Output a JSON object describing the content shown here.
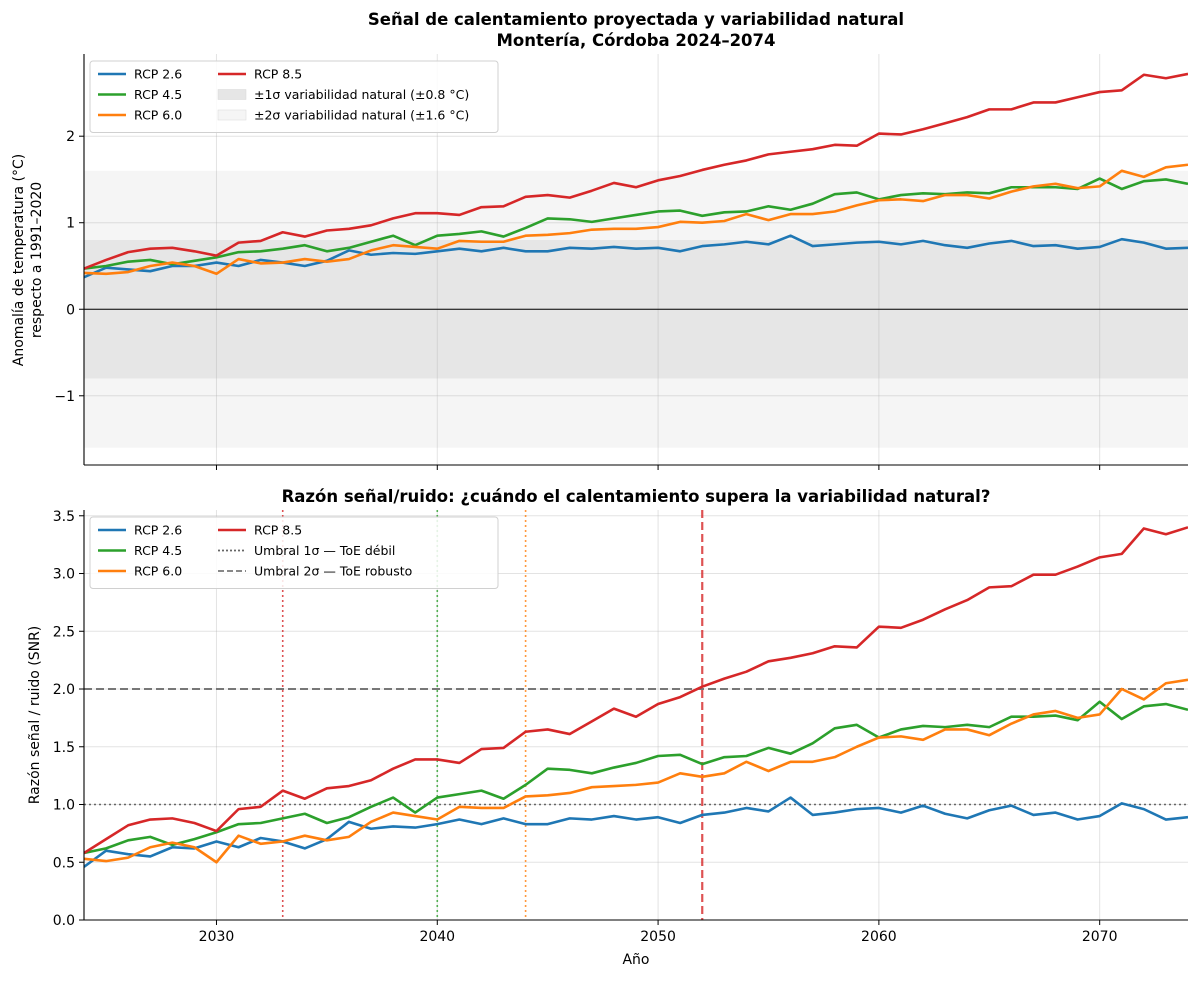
{
  "chart_data": [
    {
      "type": "line",
      "title": "Señal de calentamiento proyectada y variabilidad natural",
      "subtitle": "Montería, Córdoba 2024–2074",
      "xlabel": "",
      "ylabel": "Anomalía de temperatura (°C)",
      "ylabel2": "respecto a 1991–2020",
      "xlim": [
        2024,
        2074
      ],
      "ylim": [
        -1.8,
        2.95
      ],
      "xticks": [
        2030,
        2040,
        2050,
        2060,
        2070
      ],
      "xtick_labels_visible": false,
      "yticks": [
        -1,
        0,
        1,
        2
      ],
      "ytick_labels": [
        "−1",
        "0",
        "1",
        "2"
      ],
      "grid": true,
      "legend_position": "upper-left",
      "bands": [
        {
          "label": "±2σ variabilidad natural (±1.6 °C)",
          "low": -1.6,
          "high": 1.6,
          "color": "#f5f5f5"
        },
        {
          "label": "±1σ variabilidad natural (±0.8 °C)",
          "low": -0.8,
          "high": 0.8,
          "color": "#e6e6e6"
        }
      ],
      "zero_line": 0,
      "x": [
        2024,
        2025,
        2026,
        2027,
        2028,
        2029,
        2030,
        2031,
        2032,
        2033,
        2034,
        2035,
        2036,
        2037,
        2038,
        2039,
        2040,
        2041,
        2042,
        2043,
        2044,
        2045,
        2046,
        2047,
        2048,
        2049,
        2050,
        2051,
        2052,
        2053,
        2054,
        2055,
        2056,
        2057,
        2058,
        2059,
        2060,
        2061,
        2062,
        2063,
        2064,
        2065,
        2066,
        2067,
        2068,
        2069,
        2070,
        2071,
        2072,
        2073,
        2074
      ],
      "series": [
        {
          "name": "RCP 2.6",
          "color": "#1f77b4",
          "values": [
            0.37,
            0.48,
            0.46,
            0.44,
            0.5,
            0.5,
            0.54,
            0.5,
            0.57,
            0.54,
            0.5,
            0.56,
            0.68,
            0.63,
            0.65,
            0.64,
            0.67,
            0.7,
            0.67,
            0.71,
            0.67,
            0.67,
            0.71,
            0.7,
            0.72,
            0.7,
            0.71,
            0.67,
            0.73,
            0.75,
            0.78,
            0.75,
            0.85,
            0.73,
            0.75,
            0.77,
            0.78,
            0.75,
            0.79,
            0.74,
            0.71,
            0.76,
            0.79,
            0.73,
            0.74,
            0.7,
            0.72,
            0.81,
            0.77,
            0.7,
            0.71
          ]
        },
        {
          "name": "RCP 4.5",
          "color": "#2ca02c",
          "values": [
            0.47,
            0.5,
            0.55,
            0.57,
            0.52,
            0.56,
            0.6,
            0.66,
            0.67,
            0.7,
            0.74,
            0.67,
            0.71,
            0.78,
            0.85,
            0.74,
            0.85,
            0.87,
            0.9,
            0.84,
            0.94,
            1.05,
            1.04,
            1.01,
            1.05,
            1.09,
            1.13,
            1.14,
            1.08,
            1.12,
            1.13,
            1.19,
            1.15,
            1.22,
            1.33,
            1.35,
            1.27,
            1.32,
            1.34,
            1.33,
            1.35,
            1.34,
            1.41,
            1.41,
            1.41,
            1.39,
            1.51,
            1.39,
            1.48,
            1.5,
            1.45
          ]
        },
        {
          "name": "RCP 6.0",
          "color": "#ff7f0e",
          "values": [
            0.42,
            0.41,
            0.43,
            0.5,
            0.54,
            0.5,
            0.41,
            0.58,
            0.53,
            0.54,
            0.58,
            0.55,
            0.58,
            0.68,
            0.74,
            0.72,
            0.7,
            0.79,
            0.78,
            0.78,
            0.85,
            0.86,
            0.88,
            0.92,
            0.93,
            0.93,
            0.95,
            1.01,
            1.0,
            1.02,
            1.1,
            1.03,
            1.1,
            1.1,
            1.13,
            1.2,
            1.26,
            1.27,
            1.25,
            1.32,
            1.32,
            1.28,
            1.36,
            1.42,
            1.45,
            1.4,
            1.42,
            1.6,
            1.53,
            1.64,
            1.67
          ]
        },
        {
          "name": "RCP 8.5",
          "color": "#d62728",
          "values": [
            0.47,
            0.57,
            0.66,
            0.7,
            0.71,
            0.67,
            0.62,
            0.77,
            0.79,
            0.89,
            0.84,
            0.91,
            0.93,
            0.97,
            1.05,
            1.11,
            1.11,
            1.09,
            1.18,
            1.19,
            1.3,
            1.32,
            1.29,
            1.37,
            1.46,
            1.41,
            1.49,
            1.54,
            1.61,
            1.67,
            1.72,
            1.79,
            1.82,
            1.85,
            1.9,
            1.89,
            2.03,
            2.02,
            2.08,
            2.15,
            2.22,
            2.31,
            2.31,
            2.39,
            2.39,
            2.45,
            2.51,
            2.53,
            2.71,
            2.67,
            2.72
          ]
        }
      ]
    },
    {
      "type": "line",
      "title": "Razón señal/ruido: ¿cuándo el calentamiento supera la variabilidad natural?",
      "xlabel": "Año",
      "ylabel": "Razón señal / ruido (SNR)",
      "xlim": [
        2024,
        2074
      ],
      "ylim": [
        0,
        3.55
      ],
      "xticks": [
        2030,
        2040,
        2050,
        2060,
        2070
      ],
      "xtick_labels": [
        "2030",
        "2040",
        "2050",
        "2060",
        "2070"
      ],
      "yticks": [
        0,
        0.5,
        1,
        1.5,
        2,
        2.5,
        3,
        3.5
      ],
      "ytick_labels": [
        "0.0",
        "0.5",
        "1.0",
        "1.5",
        "2.0",
        "2.5",
        "3.0",
        "3.5"
      ],
      "grid": true,
      "legend_position": "upper-left",
      "thresholds": [
        {
          "label": "Umbral 1σ — ToE débil",
          "y": 1.0,
          "style": "dotted",
          "color": "#666666"
        },
        {
          "label": "Umbral 2σ — ToE robusto",
          "y": 2.0,
          "style": "dashed",
          "color": "#777777"
        }
      ],
      "toe_markers": [
        {
          "series": "RCP 8.5",
          "x": 2033,
          "style": "dotted",
          "color": "#d62728"
        },
        {
          "series": "RCP 4.5",
          "x": 2040,
          "style": "dotted",
          "color": "#2ca02c"
        },
        {
          "series": "RCP 6.0",
          "x": 2044,
          "style": "dotted",
          "color": "#ff7f0e"
        },
        {
          "series": "RCP 8.5",
          "x": 2052,
          "style": "dashed",
          "color": "#d62728"
        }
      ],
      "x": [
        2024,
        2025,
        2026,
        2027,
        2028,
        2029,
        2030,
        2031,
        2032,
        2033,
        2034,
        2035,
        2036,
        2037,
        2038,
        2039,
        2040,
        2041,
        2042,
        2043,
        2044,
        2045,
        2046,
        2047,
        2048,
        2049,
        2050,
        2051,
        2052,
        2053,
        2054,
        2055,
        2056,
        2057,
        2058,
        2059,
        2060,
        2061,
        2062,
        2063,
        2064,
        2065,
        2066,
        2067,
        2068,
        2069,
        2070,
        2071,
        2072,
        2073,
        2074
      ],
      "series": [
        {
          "name": "RCP 2.6",
          "color": "#1f77b4",
          "values": [
            0.46,
            0.6,
            0.57,
            0.55,
            0.63,
            0.62,
            0.68,
            0.63,
            0.71,
            0.68,
            0.62,
            0.7,
            0.85,
            0.79,
            0.81,
            0.8,
            0.83,
            0.87,
            0.83,
            0.88,
            0.83,
            0.83,
            0.88,
            0.87,
            0.9,
            0.87,
            0.89,
            0.84,
            0.91,
            0.93,
            0.97,
            0.94,
            1.06,
            0.91,
            0.93,
            0.96,
            0.97,
            0.93,
            0.99,
            0.92,
            0.88,
            0.95,
            0.99,
            0.91,
            0.93,
            0.87,
            0.9,
            1.01,
            0.96,
            0.87,
            0.89
          ]
        },
        {
          "name": "RCP 4.5",
          "color": "#2ca02c",
          "values": [
            0.58,
            0.62,
            0.69,
            0.72,
            0.65,
            0.7,
            0.76,
            0.83,
            0.84,
            0.88,
            0.92,
            0.84,
            0.89,
            0.98,
            1.06,
            0.93,
            1.06,
            1.09,
            1.12,
            1.05,
            1.17,
            1.31,
            1.3,
            1.27,
            1.32,
            1.36,
            1.42,
            1.43,
            1.35,
            1.41,
            1.42,
            1.49,
            1.44,
            1.53,
            1.66,
            1.69,
            1.58,
            1.65,
            1.68,
            1.67,
            1.69,
            1.67,
            1.76,
            1.76,
            1.77,
            1.73,
            1.89,
            1.74,
            1.85,
            1.87,
            1.82
          ]
        },
        {
          "name": "RCP 6.0",
          "color": "#ff7f0e",
          "values": [
            0.53,
            0.51,
            0.54,
            0.63,
            0.67,
            0.63,
            0.5,
            0.73,
            0.66,
            0.68,
            0.73,
            0.69,
            0.72,
            0.85,
            0.93,
            0.9,
            0.87,
            0.98,
            0.97,
            0.97,
            1.07,
            1.08,
            1.1,
            1.15,
            1.16,
            1.17,
            1.19,
            1.27,
            1.24,
            1.27,
            1.37,
            1.29,
            1.37,
            1.37,
            1.41,
            1.5,
            1.58,
            1.59,
            1.56,
            1.65,
            1.65,
            1.6,
            1.7,
            1.78,
            1.81,
            1.75,
            1.78,
            2.0,
            1.91,
            2.05,
            2.08
          ]
        },
        {
          "name": "RCP 8.5",
          "color": "#d62728",
          "values": [
            0.58,
            0.7,
            0.82,
            0.87,
            0.88,
            0.84,
            0.77,
            0.96,
            0.98,
            1.12,
            1.05,
            1.14,
            1.16,
            1.21,
            1.31,
            1.39,
            1.39,
            1.36,
            1.48,
            1.49,
            1.63,
            1.65,
            1.61,
            1.72,
            1.83,
            1.76,
            1.87,
            1.93,
            2.02,
            2.09,
            2.15,
            2.24,
            2.27,
            2.31,
            2.37,
            2.36,
            2.54,
            2.53,
            2.6,
            2.69,
            2.77,
            2.88,
            2.89,
            2.99,
            2.99,
            3.06,
            3.14,
            3.17,
            3.39,
            3.34,
            3.4
          ]
        }
      ]
    }
  ]
}
